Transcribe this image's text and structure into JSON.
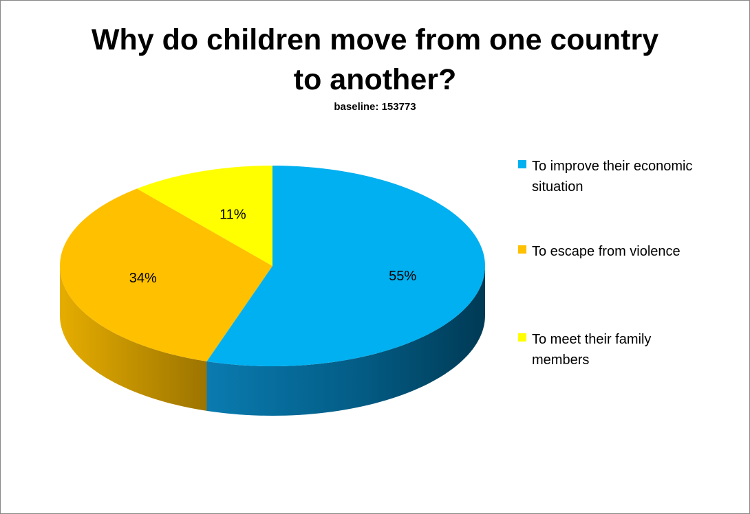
{
  "chart_data": {
    "type": "pie",
    "title": "Why do children move from one country to another?",
    "title_lines": [
      "Why do children move from one country",
      "to another?"
    ],
    "subtitle": "baseline: 153773",
    "style": "3d",
    "legend_position": "right",
    "slices": [
      {
        "label": "To improve their economic situation",
        "legend_lines": [
          "To improve their economic",
          "situation"
        ],
        "value": 55,
        "data_label": "55%",
        "color": "#00B0F0",
        "side_color": "#005F85"
      },
      {
        "label": "To escape from violence",
        "legend_lines": [
          "To escape from violence"
        ],
        "value": 34,
        "data_label": "34%",
        "color": "#FFC000",
        "side_color": "#B88A00"
      },
      {
        "label": "To meet their family members",
        "legend_lines": [
          "To meet their family",
          "members"
        ],
        "value": 11,
        "data_label": "11%",
        "color": "#FFFF00",
        "side_color": "#B8B800"
      }
    ]
  }
}
